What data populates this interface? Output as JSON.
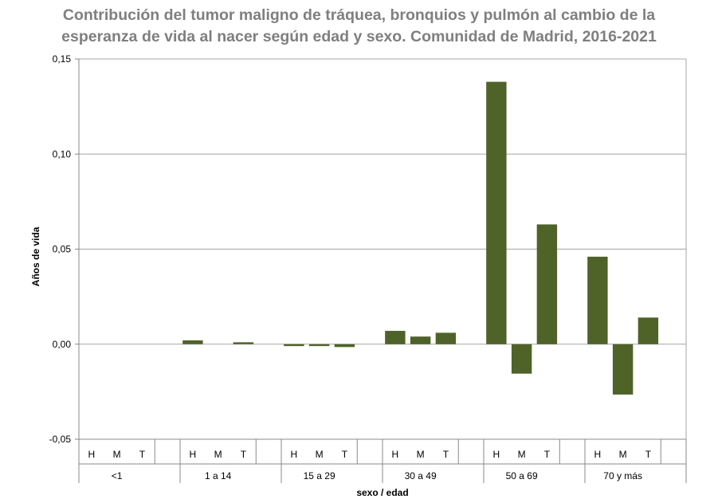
{
  "chart_data": {
    "type": "bar",
    "title_lines": [
      "Contribución del tumor maligno de tráquea, bronquios y pulmón al cambio de la",
      "esperanza de vida al nacer según edad y sexo. Comunidad de Madrid, 2016-2021"
    ],
    "ylabel": "Años de vida",
    "xlabel": "sexo / edad",
    "ylim": [
      -0.05,
      0.15
    ],
    "yticks": [
      -0.05,
      0.0,
      0.05,
      0.1,
      0.15
    ],
    "ytick_labels": [
      "-0,05",
      "0,00",
      "0,05",
      "0,10",
      "0,15"
    ],
    "bar_color": "#4f6228",
    "grid": true,
    "groups": [
      {
        "label": "<1",
        "sexes": [
          "H",
          "M",
          "T"
        ],
        "values": [
          0.0,
          0.0,
          0.0
        ]
      },
      {
        "label": "1 a 14",
        "sexes": [
          "H",
          "M",
          "T"
        ],
        "values": [
          0.002,
          0.0,
          0.001
        ]
      },
      {
        "label": "15 a 29",
        "sexes": [
          "H",
          "M",
          "T"
        ],
        "values": [
          -0.001,
          -0.001,
          -0.0015
        ]
      },
      {
        "label": "30 a 49",
        "sexes": [
          "H",
          "M",
          "T"
        ],
        "values": [
          0.007,
          0.004,
          0.006
        ]
      },
      {
        "label": "50 a 69",
        "sexes": [
          "H",
          "M",
          "T"
        ],
        "values": [
          0.138,
          -0.0155,
          0.063
        ]
      },
      {
        "label": "70 y más",
        "sexes": [
          "H",
          "M",
          "T"
        ],
        "values": [
          0.046,
          -0.0265,
          0.014
        ]
      }
    ]
  }
}
